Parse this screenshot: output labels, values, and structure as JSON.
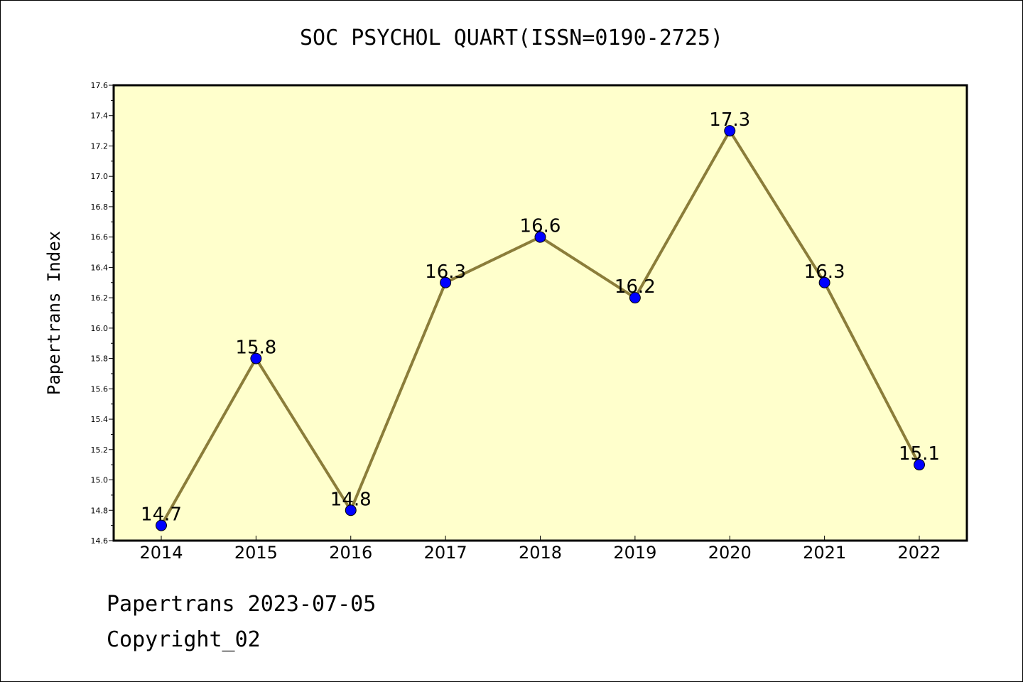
{
  "chart_data": {
    "type": "line",
    "title": "SOC PSYCHOL QUART(ISSN=0190-2725)",
    "xlabel": "",
    "ylabel": "Papertrans Index",
    "categories": [
      "2014",
      "2015",
      "2016",
      "2017",
      "2018",
      "2019",
      "2020",
      "2021",
      "2022"
    ],
    "series": [
      {
        "values": [
          14.7,
          15.8,
          14.8,
          16.3,
          16.6,
          16.2,
          17.3,
          16.3,
          15.1
        ],
        "data_labels": [
          "14.7",
          "15.8",
          "14.8",
          "16.3",
          "16.6",
          "16.2",
          "17.3",
          "16.3",
          "15.1"
        ]
      }
    ],
    "ylim": [
      14.6,
      17.6
    ],
    "yticks": [
      "14.6",
      "14.8",
      "15.0",
      "15.2",
      "15.4",
      "15.6",
      "15.8",
      "16.0",
      "16.2",
      "16.4",
      "16.6",
      "16.8",
      "17.0",
      "17.2",
      "17.4",
      "17.6"
    ],
    "grid": false,
    "colors": {
      "plot_background": "#ffffcc",
      "line": "#8b7d3a",
      "marker": "#0000ff",
      "marker_edge": "#000000"
    }
  },
  "footer": {
    "line1": "Papertrans 2023-07-05",
    "line2": "Copyright_02"
  }
}
